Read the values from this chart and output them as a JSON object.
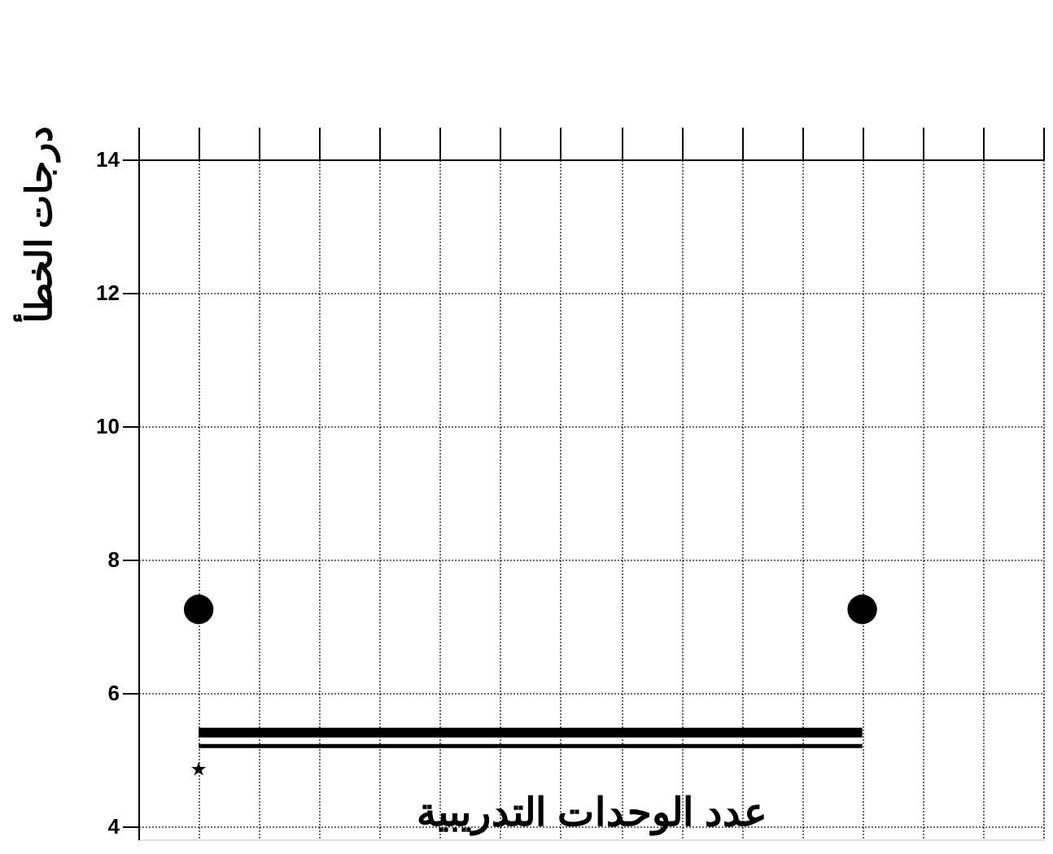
{
  "chart_data": {
    "type": "scatter",
    "xlabel": "عدد الوحدات التدريبية",
    "ylabel": "درجات الخطأ",
    "categories": [
      null,
      null,
      null,
      null,
      null,
      null,
      null,
      null,
      null,
      null,
      null,
      null,
      null,
      null,
      null,
      null
    ],
    "ylim": [
      3.8,
      14
    ],
    "yticks": [
      4,
      6,
      8,
      10,
      12,
      14
    ],
    "grid": true,
    "tick_labels": "y",
    "series": [
      {
        "marker": "circle",
        "color": "#000000",
        "values": [
          null,
          7.25,
          null,
          null,
          null,
          null,
          null,
          null,
          null,
          null,
          null,
          null,
          7.25,
          null,
          null,
          null
        ]
      },
      {
        "type": "line",
        "line_style": "solid",
        "color": "#000000",
        "values": [
          null,
          5.4,
          5.4,
          5.4,
          5.4,
          5.4,
          5.4,
          5.4,
          5.4,
          5.4,
          5.4,
          5.4,
          5.4,
          null,
          null,
          null
        ]
      },
      {
        "type": "line",
        "line_style": "solid",
        "color": "#000000",
        "values": [
          null,
          5.2,
          5.2,
          5.2,
          5.2,
          5.2,
          5.2,
          5.2,
          5.2,
          5.2,
          5.2,
          5.2,
          5.2,
          null,
          null,
          null
        ]
      },
      {
        "marker": "star",
        "color": "#000000",
        "values": [
          null,
          4.85,
          null,
          null,
          null,
          null,
          null,
          null,
          null,
          null,
          null,
          null,
          null,
          null,
          null,
          null
        ]
      }
    ]
  }
}
